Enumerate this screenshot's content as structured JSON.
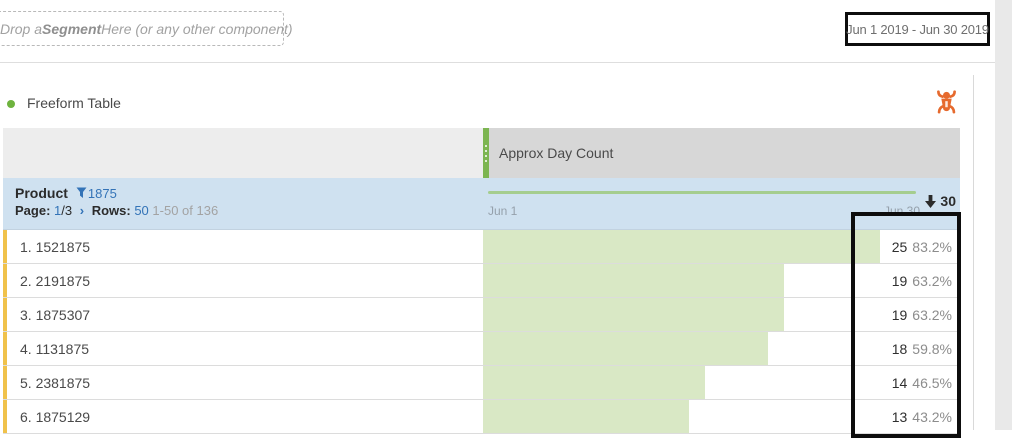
{
  "header": {
    "segment_dropzone": {
      "prefix": "Drop a ",
      "component": "Segment",
      "suffix": " Here (or any other component)"
    },
    "date_range": "Jun 1 2019 - Jun 30 2019"
  },
  "panel": {
    "title": "Freeform Table",
    "metric_header": "Approx Day Count",
    "dimension_header": {
      "name": "Product",
      "filter_count": "1875",
      "page_label": "Page:",
      "page_current": "1",
      "page_total": "/3",
      "chevron": "›",
      "rows_label": "Rows:",
      "rows_value": "50",
      "row_range": "1-50 of 136"
    },
    "sort": {
      "value": "30"
    },
    "axis": {
      "start": "Jun 1",
      "end": "Jun 30"
    },
    "rows": [
      {
        "label": "1. 1521875",
        "count": "25",
        "pct": "83.2%",
        "bar_pct": 83.2
      },
      {
        "label": "2. 2191875",
        "count": "19",
        "pct": "63.2%",
        "bar_pct": 63.2
      },
      {
        "label": "3. 1875307",
        "count": "19",
        "pct": "63.2%",
        "bar_pct": 63.2
      },
      {
        "label": "4. 1131875",
        "count": "18",
        "pct": "59.8%",
        "bar_pct": 59.8
      },
      {
        "label": "5. 2381875",
        "count": "14",
        "pct": "46.5%",
        "bar_pct": 46.5
      },
      {
        "label": "6. 1875129",
        "count": "13",
        "pct": "43.2%",
        "bar_pct": 43.2
      }
    ]
  },
  "icons": {
    "viz_icon": "bug-icon",
    "filter_icon": "funnel-icon",
    "sort_icon": "arrow-down-icon",
    "handle_icon": "drag-handle-dots"
  },
  "colors": {
    "bar_green": "#d9e8c5",
    "sparkline_green": "#a5cd8f",
    "handle_green": "#7cb551",
    "link_blue": "#3373b7",
    "row_accent_yellow": "#f0c24b",
    "icon_orange": "#e66a2e",
    "band_blue": "#cfe1f0",
    "title_dot_green": "#6eb33e",
    "annotation_black": "#0d0d0d"
  }
}
